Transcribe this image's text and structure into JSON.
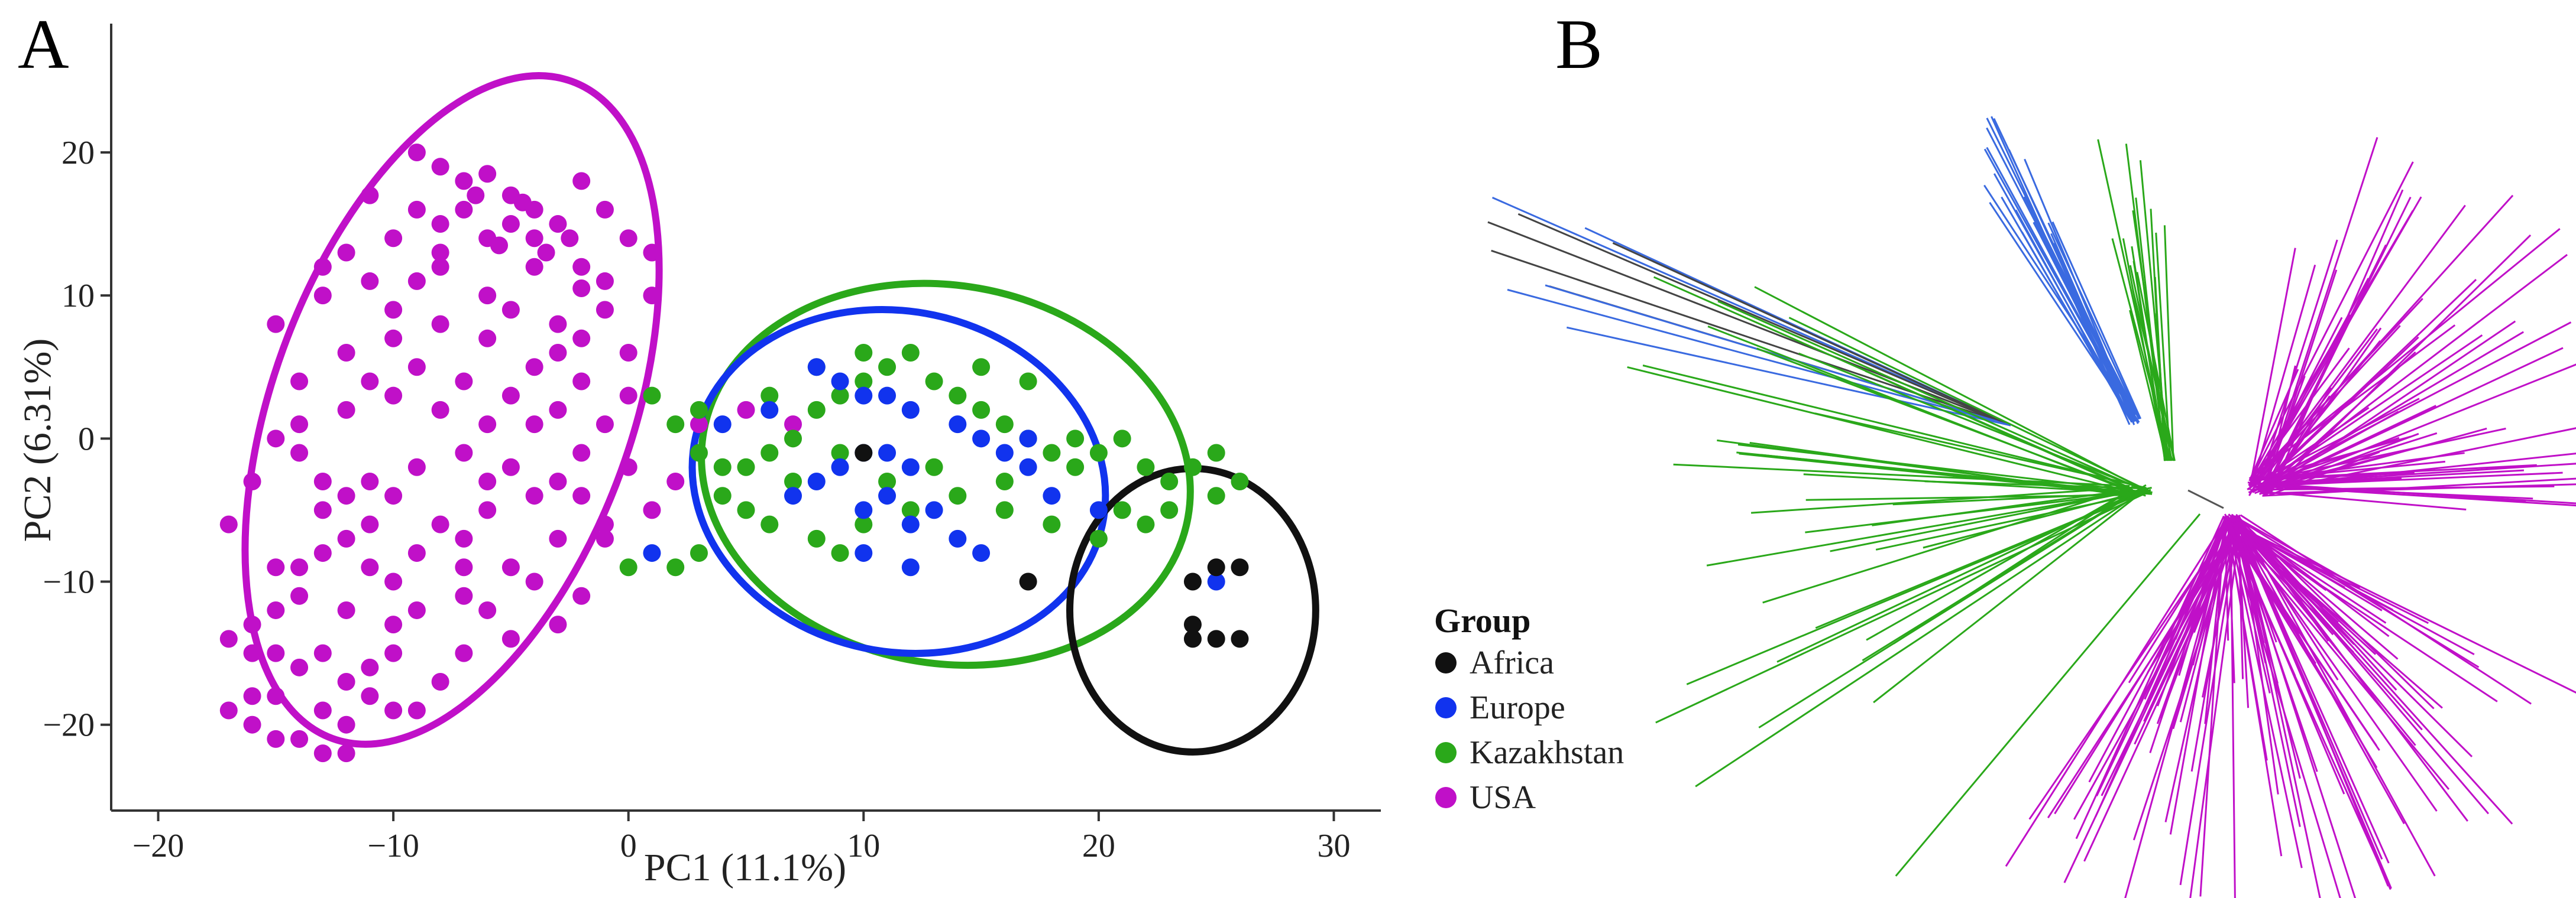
{
  "panels": {
    "a_label": "A",
    "b_label": "B"
  },
  "colors": {
    "Africa": "#111111",
    "Europe": "#1133ee",
    "Kazakhstan": "#2aa81a",
    "USA": "#c010c8"
  },
  "legend": {
    "title": "Group",
    "entries": [
      {
        "label": "Africa",
        "color": "#111111"
      },
      {
        "label": "Europe",
        "color": "#1133ee"
      },
      {
        "label": "Kazakhstan",
        "color": "#2aa81a"
      },
      {
        "label": "USA",
        "color": "#c010c8"
      }
    ]
  },
  "chart_data": [
    {
      "panel": "A",
      "type": "scatter",
      "title": "",
      "xlabel": "PC1 (11.1%)",
      "ylabel": "PC2 (6.31%)",
      "xlim": [
        -22,
        32
      ],
      "ylim": [
        -26,
        29
      ],
      "xticks": [
        -20,
        -10,
        0,
        10,
        20,
        30
      ],
      "xtick_labels": [
        "−20",
        "−10",
        "0",
        "10",
        "20",
        "30"
      ],
      "yticks": [
        -20,
        -10,
        0,
        10,
        20
      ],
      "ytick_labels": [
        "−20",
        "−10",
        "0",
        "10",
        "20"
      ],
      "grid": false,
      "legend_position": "right",
      "series": [
        {
          "name": "USA",
          "color": "#c010c8",
          "points": [
            [
              -8,
              19
            ],
            [
              -7,
              18
            ],
            [
              -6,
              18.5
            ],
            [
              -6.5,
              17
            ],
            [
              -5,
              17
            ],
            [
              -4,
              16
            ],
            [
              -3,
              15
            ],
            [
              -5,
              15
            ],
            [
              -4,
              14
            ],
            [
              -6,
              14
            ],
            [
              -5.5,
              13.5
            ],
            [
              -3.5,
              13
            ],
            [
              -2.5,
              14
            ],
            [
              -4.5,
              16.5
            ],
            [
              -7,
              16
            ],
            [
              -8,
              15
            ],
            [
              -9,
              16
            ],
            [
              -11,
              17
            ],
            [
              -10,
              14
            ],
            [
              -12,
              13
            ],
            [
              -8,
              13
            ],
            [
              -6,
              10
            ],
            [
              -5,
              9
            ],
            [
              -3,
              8
            ],
            [
              -2,
              7
            ],
            [
              -1,
              11
            ],
            [
              1,
              13
            ],
            [
              1,
              10
            ],
            [
              -4,
              12
            ],
            [
              -2,
              10.5
            ],
            [
              -1,
              9
            ],
            [
              -3,
              6
            ],
            [
              -6,
              7
            ],
            [
              -8,
              8
            ],
            [
              -10,
              9
            ],
            [
              -11,
              11
            ],
            [
              -13,
              10
            ],
            [
              -15,
              8
            ],
            [
              -12,
              6
            ],
            [
              -9,
              5
            ],
            [
              -7,
              4
            ],
            [
              -5,
              3
            ],
            [
              -4,
              5
            ],
            [
              -2,
              4
            ],
            [
              0,
              3
            ],
            [
              -1,
              1
            ],
            [
              -2,
              -1
            ],
            [
              -3,
              -3
            ],
            [
              -5,
              -2
            ],
            [
              -7,
              -1
            ],
            [
              -6,
              1
            ],
            [
              -8,
              2
            ],
            [
              -10,
              3
            ],
            [
              -12,
              2
            ],
            [
              -14,
              1
            ],
            [
              -15,
              0
            ],
            [
              -14,
              -1
            ],
            [
              -13,
              -3
            ],
            [
              -12,
              -4
            ],
            [
              -13,
              -5
            ],
            [
              -11,
              -6
            ],
            [
              -12,
              -7
            ],
            [
              -13,
              -8
            ],
            [
              -14,
              -9
            ],
            [
              -11,
              -9
            ],
            [
              -10,
              -10
            ],
            [
              -9,
              -8
            ],
            [
              -8,
              -6
            ],
            [
              -6,
              -5
            ],
            [
              -4,
              -4
            ],
            [
              -2,
              -4
            ],
            [
              0,
              -2
            ],
            [
              -1,
              -6
            ],
            [
              -3,
              -7
            ],
            [
              -5,
              -9
            ],
            [
              -2,
              -11
            ],
            [
              -7,
              -11
            ],
            [
              -9,
              -12
            ],
            [
              -10,
              -13
            ],
            [
              -12,
              -12
            ],
            [
              -14,
              -11
            ],
            [
              -15,
              -12
            ],
            [
              -16,
              -13
            ],
            [
              -17,
              -14
            ],
            [
              -15,
              -15
            ],
            [
              -14,
              -16
            ],
            [
              -16,
              -18
            ],
            [
              -15,
              -18
            ],
            [
              -13,
              -19
            ],
            [
              -11,
              -18
            ],
            [
              -10,
              -19
            ],
            [
              -9,
              -19
            ],
            [
              -12,
              -20
            ],
            [
              -14,
              -21
            ],
            [
              -13,
              -22
            ],
            [
              -12,
              -22
            ],
            [
              -15,
              -21
            ],
            [
              -16,
              -20
            ],
            [
              -17,
              -19
            ],
            [
              -11,
              -16
            ],
            [
              -10,
              -15
            ],
            [
              -8,
              -17
            ],
            [
              -7,
              -15
            ],
            [
              -6,
              -12
            ],
            [
              -4,
              -10
            ],
            [
              -1,
              -7
            ],
            [
              1,
              -5
            ],
            [
              2,
              -3
            ],
            [
              3,
              1
            ],
            [
              5,
              2
            ],
            [
              7,
              1
            ],
            [
              -2,
              18
            ],
            [
              -1,
              16
            ],
            [
              0,
              14
            ],
            [
              -9,
              11
            ],
            [
              -10,
              7
            ],
            [
              -13,
              12
            ],
            [
              -16,
              -3
            ],
            [
              -17,
              -6
            ],
            [
              -15,
              -9
            ],
            [
              -11,
              -3
            ],
            [
              -9,
              -2
            ],
            [
              -7,
              -7
            ],
            [
              -5,
              -14
            ],
            [
              -3,
              -13
            ],
            [
              -13,
              -15
            ],
            [
              -12,
              -17
            ],
            [
              -16,
              -15
            ],
            [
              -6,
              -3
            ],
            [
              -4,
              1
            ],
            [
              0,
              6
            ],
            [
              -3,
              2
            ],
            [
              -2,
              12
            ],
            [
              -9,
              20
            ],
            [
              -8,
              12
            ],
            [
              -11,
              4
            ],
            [
              -14,
              4
            ],
            [
              -10,
              -4
            ],
            [
              -7,
              -9
            ]
          ]
        },
        {
          "name": "Kazakhstan",
          "color": "#2aa81a",
          "points": [
            [
              1,
              3
            ],
            [
              2,
              1
            ],
            [
              3,
              -1
            ],
            [
              4,
              -2
            ],
            [
              6,
              -1
            ],
            [
              7,
              0
            ],
            [
              8,
              2
            ],
            [
              9,
              3
            ],
            [
              10,
              4
            ],
            [
              11,
              5
            ],
            [
              12,
              6
            ],
            [
              13,
              4
            ],
            [
              14,
              3
            ],
            [
              15,
              2
            ],
            [
              16,
              1
            ],
            [
              17,
              0
            ],
            [
              18,
              -1
            ],
            [
              19,
              -2
            ],
            [
              20,
              -1
            ],
            [
              21,
              0
            ],
            [
              22,
              -2
            ],
            [
              23,
              -3
            ],
            [
              24,
              -2
            ],
            [
              25,
              -1
            ],
            [
              26,
              -3
            ],
            [
              22,
              -6
            ],
            [
              20,
              -7
            ],
            [
              18,
              -6
            ],
            [
              16,
              -5
            ],
            [
              14,
              -4
            ],
            [
              12,
              -5
            ],
            [
              10,
              -6
            ],
            [
              9,
              -8
            ],
            [
              8,
              -7
            ],
            [
              6,
              -6
            ],
            [
              5,
              -5
            ],
            [
              4,
              -4
            ],
            [
              3,
              -8
            ],
            [
              2,
              -9
            ],
            [
              0,
              -9
            ],
            [
              15,
              5
            ],
            [
              17,
              4
            ],
            [
              13,
              -2
            ],
            [
              11,
              -3
            ],
            [
              9,
              -1
            ],
            [
              7,
              -3
            ],
            [
              5,
              -2
            ],
            [
              3,
              2
            ],
            [
              6,
              3
            ],
            [
              8,
              5
            ],
            [
              10,
              6
            ],
            [
              16,
              -3
            ],
            [
              19,
              0
            ],
            [
              21,
              -5
            ],
            [
              23,
              -5
            ],
            [
              25,
              -4
            ]
          ]
        },
        {
          "name": "Europe",
          "color": "#1133ee",
          "points": [
            [
              8,
              5
            ],
            [
              9,
              4
            ],
            [
              10,
              3
            ],
            [
              11,
              3
            ],
            [
              12,
              2
            ],
            [
              14,
              1
            ],
            [
              15,
              0
            ],
            [
              16,
              -1
            ],
            [
              17,
              -2
            ],
            [
              10,
              -1
            ],
            [
              11,
              -1
            ],
            [
              12,
              -2
            ],
            [
              9,
              -2
            ],
            [
              8,
              -3
            ],
            [
              7,
              -4
            ],
            [
              10,
              -5
            ],
            [
              11,
              -4
            ],
            [
              12,
              -6
            ],
            [
              13,
              -5
            ],
            [
              14,
              -7
            ],
            [
              15,
              -8
            ],
            [
              10,
              -8
            ],
            [
              12,
              -9
            ],
            [
              1,
              -8
            ],
            [
              4,
              1
            ],
            [
              6,
              2
            ],
            [
              18,
              -4
            ],
            [
              20,
              -5
            ],
            [
              25,
              -10
            ],
            [
              17,
              0
            ]
          ]
        },
        {
          "name": "Africa",
          "color": "#111111",
          "points": [
            [
              10,
              -1
            ],
            [
              17,
              -10
            ],
            [
              24,
              -10
            ],
            [
              25,
              -9
            ],
            [
              26,
              -9
            ],
            [
              24,
              -13
            ],
            [
              25,
              -14
            ],
            [
              26,
              -14
            ],
            [
              24,
              -14
            ]
          ]
        }
      ],
      "ellipses": [
        {
          "group": "USA",
          "cx": -7.5,
          "cy": 2,
          "rx": 18.5,
          "ry": 9.5,
          "angle_deg": 70
        },
        {
          "group": "Kazakhstan",
          "cx": 13.5,
          "cy": -2.5,
          "rx": 13,
          "ry": 10,
          "angle_deg": -10
        },
        {
          "group": "Europe",
          "cx": 11.5,
          "cy": -3,
          "rx": 11,
          "ry": 9,
          "angle_deg": -12
        },
        {
          "group": "Africa",
          "cx": 24,
          "cy": -12,
          "rx": 6.5,
          "ry": 7.5,
          "angle_deg": 0
        }
      ]
    },
    {
      "panel": "B",
      "type": "tree",
      "title": "",
      "description_groups": [
        {
          "name": "Europe",
          "color": "#3a6ae0",
          "branches": 32
        },
        {
          "name": "Africa",
          "color": "#444444",
          "branches": 8
        },
        {
          "name": "Kazakhstan",
          "color": "#2aa81a",
          "branches": 90
        },
        {
          "name": "USA",
          "color": "#c010c8",
          "branches": 190
        }
      ]
    }
  ]
}
